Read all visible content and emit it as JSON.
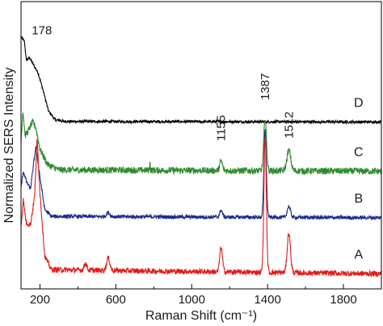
{
  "chart_data": {
    "type": "line",
    "xlabel": "Raman Shift (cm⁻¹)",
    "ylabel": "Normalized SERS Intensity",
    "xlim": [
      100,
      2000
    ],
    "x_ticks": [
      "200",
      "600",
      "1000",
      "1400",
      "1800"
    ],
    "x_tick_values": [
      200,
      600,
      1000,
      1400,
      1800
    ],
    "y_ticks": "none",
    "grid": false,
    "annotations": [
      {
        "text": "178",
        "x": 178,
        "y": 9.3
      },
      {
        "text": "1155",
        "x": 1155,
        "y": 5.4
      },
      {
        "text": "1387",
        "x": 1387,
        "y": 6.9
      },
      {
        "text": "1512",
        "x": 1512,
        "y": 5.5
      }
    ],
    "series": [
      {
        "name": "D",
        "color": "#000000",
        "baseline": 6.1,
        "noise": 0.05,
        "points": [
          [
            100,
            9.2
          ],
          [
            118,
            9.05
          ],
          [
            128,
            8.35
          ],
          [
            145,
            8.45
          ],
          [
            165,
            8.2
          ],
          [
            190,
            7.9
          ],
          [
            215,
            7.3
          ],
          [
            245,
            6.5
          ],
          [
            280,
            6.18
          ],
          [
            330,
            6.12
          ],
          [
            2000,
            6.1
          ]
        ],
        "peaks": [],
        "label": "D"
      },
      {
        "name": "C",
        "color": "#2e8b2e",
        "baseline": 4.3,
        "noise": 0.12,
        "points": [
          [
            100,
            5.4
          ],
          [
            110,
            6.55
          ],
          [
            122,
            5.6
          ],
          [
            140,
            5.8
          ],
          [
            160,
            6.1
          ],
          [
            178,
            5.9
          ],
          [
            200,
            5.1
          ],
          [
            240,
            4.55
          ],
          [
            300,
            4.35
          ],
          [
            2000,
            4.3
          ]
        ],
        "peaks": [
          [
            1155,
            0.35,
            10
          ],
          [
            1387,
            1.9,
            10
          ],
          [
            1512,
            0.75,
            14
          ],
          [
            780,
            0.45,
            1.5
          ]
        ],
        "label": "C"
      },
      {
        "name": "B",
        "color": "#1a2a8c",
        "baseline": 2.6,
        "noise": 0.07,
        "points": [
          [
            100,
            3.7
          ],
          [
            112,
            4.3
          ],
          [
            130,
            3.9
          ],
          [
            150,
            3.65
          ],
          [
            178,
            5.2
          ],
          [
            200,
            4.1
          ],
          [
            225,
            2.9
          ],
          [
            260,
            2.65
          ],
          [
            2000,
            2.6
          ]
        ],
        "peaks": [
          [
            1155,
            0.25,
            10
          ],
          [
            1387,
            3.2,
            9
          ],
          [
            1512,
            0.4,
            12
          ],
          [
            560,
            0.15,
            12
          ]
        ],
        "label": "B"
      },
      {
        "name": "A",
        "color": "#e31a1a",
        "baseline": 0.55,
        "noise": 0.1,
        "points": [
          [
            100,
            2.3
          ],
          [
            112,
            3.25
          ],
          [
            128,
            2.4
          ],
          [
            150,
            2.35
          ],
          [
            172,
            3.4
          ],
          [
            185,
            5.5
          ],
          [
            200,
            3.5
          ],
          [
            225,
            1.2
          ],
          [
            260,
            0.7
          ],
          [
            2000,
            0.55
          ]
        ],
        "peaks": [
          [
            440,
            0.25,
            10
          ],
          [
            560,
            0.45,
            12
          ],
          [
            1155,
            0.9,
            10
          ],
          [
            1387,
            5.0,
            9
          ],
          [
            1512,
            1.45,
            12
          ]
        ],
        "label": "A"
      }
    ],
    "ylim": [
      0,
      10.5
    ]
  }
}
